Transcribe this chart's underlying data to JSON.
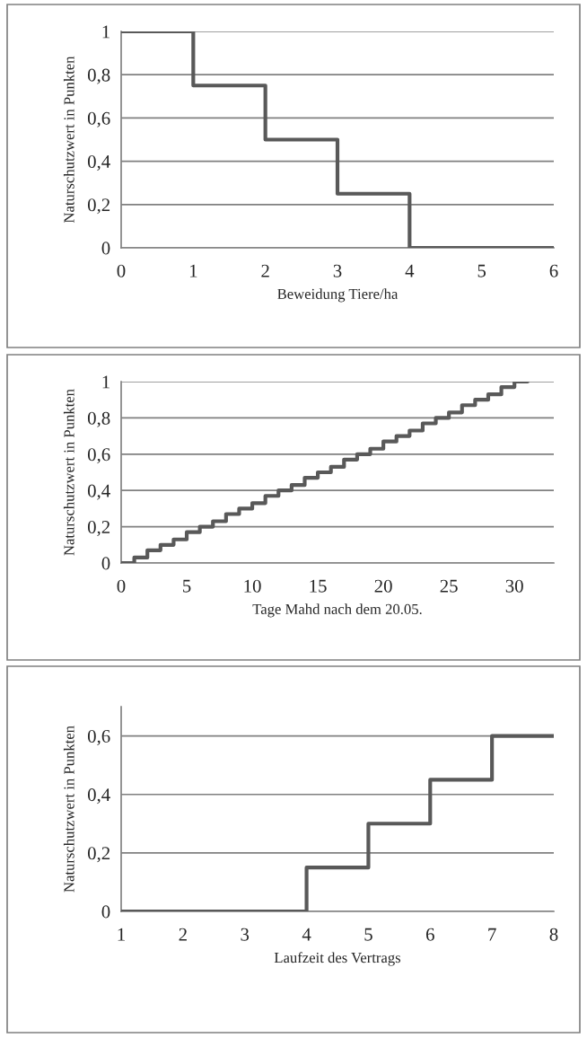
{
  "chart_data": [
    {
      "type": "step",
      "xlabel": "Beweidung Tiere/ha",
      "ylabel": "Naturschutzwert in Punkten",
      "color": "#595959",
      "grid": "y",
      "x": [
        0,
        1,
        2,
        3,
        4,
        5,
        6
      ],
      "values": [
        1,
        0.75,
        0.5,
        0.25,
        0,
        0,
        0
      ],
      "xlim": [
        0,
        6
      ],
      "xticks": [
        0,
        1,
        2,
        3,
        4,
        5,
        6
      ],
      "ylim": [
        0,
        1
      ],
      "yticks": [
        0,
        {
          "value": 0.2,
          "label": "0,2"
        },
        {
          "value": 0.4,
          "label": "0,4"
        },
        {
          "value": 0.6,
          "label": "0,6"
        },
        {
          "value": 0.8,
          "label": "0,8"
        },
        1
      ]
    },
    {
      "type": "step",
      "xlabel": "Tage Mahd nach dem 20.05.",
      "ylabel": "Naturschutzwert in Punkten",
      "color": "#595959",
      "grid": "y",
      "x": [
        0,
        1,
        2,
        3,
        4,
        5,
        6,
        7,
        8,
        9,
        10,
        11,
        12,
        13,
        14,
        15,
        16,
        17,
        18,
        19,
        20,
        21,
        22,
        23,
        24,
        25,
        26,
        27,
        28,
        29,
        30,
        31
      ],
      "values": [
        0,
        0.03,
        0.07,
        0.1,
        0.13,
        0.17,
        0.2,
        0.23,
        0.27,
        0.3,
        0.33,
        0.37,
        0.4,
        0.43,
        0.47,
        0.5,
        0.53,
        0.57,
        0.6,
        0.63,
        0.67,
        0.7,
        0.73,
        0.77,
        0.8,
        0.83,
        0.87,
        0.9,
        0.93,
        0.97,
        1,
        1
      ],
      "xlim": [
        0,
        33
      ],
      "xticks": [
        0,
        5,
        10,
        15,
        20,
        25,
        30
      ],
      "ylim": [
        0,
        1
      ],
      "yticks": [
        0,
        {
          "value": 0.2,
          "label": "0,2"
        },
        {
          "value": 0.4,
          "label": "0,4"
        },
        {
          "value": 0.6,
          "label": "0,6"
        },
        {
          "value": 0.8,
          "label": "0,8"
        },
        1
      ]
    },
    {
      "type": "step",
      "xlabel": "Laufzeit des Vertrags",
      "ylabel": "Naturschutzwert in Punkten",
      "color": "#595959",
      "grid": "y",
      "x": [
        1,
        2,
        3,
        4,
        5,
        6,
        7,
        8
      ],
      "values": [
        0,
        0,
        0,
        0.15,
        0.3,
        0.45,
        0.6,
        0.6
      ],
      "xlim": [
        1,
        8
      ],
      "xticks": [
        1,
        2,
        3,
        4,
        5,
        6,
        7,
        8
      ],
      "ylim": [
        0,
        0.7
      ],
      "yticks": [
        0,
        {
          "value": 0.2,
          "label": "0,2"
        },
        {
          "value": 0.4,
          "label": "0,4"
        },
        {
          "value": 0.6,
          "label": "0,6"
        }
      ]
    }
  ]
}
